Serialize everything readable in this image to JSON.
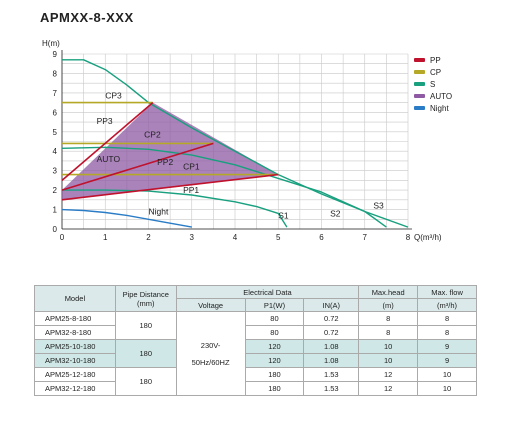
{
  "page_title": "APMXX-8-XXX",
  "chart_data": {
    "type": "line",
    "xlabel": "Q(m³/h)",
    "ylabel": "H(m)",
    "xlim": [
      0,
      8
    ],
    "ylim": [
      0,
      9
    ],
    "x_ticks": [
      "0",
      "1",
      "2",
      "3",
      "4",
      "5",
      "6",
      "7",
      "8"
    ],
    "y_ticks": [
      "0",
      "1",
      "2",
      "3",
      "4",
      "5",
      "6",
      "7",
      "8",
      "9"
    ],
    "grid": true,
    "legend_position": "top-right",
    "legend": [
      {
        "label": "PP",
        "color": "#c0112d"
      },
      {
        "label": "CP",
        "color": "#b5a827"
      },
      {
        "label": "S",
        "color": "#18a07f"
      },
      {
        "label": "AUTO",
        "color": "#8e5aa3"
      },
      {
        "label": "Night",
        "color": "#2a7cc6"
      }
    ],
    "series": [
      {
        "name": "S3",
        "type": "S",
        "color": "#18a07f",
        "x": [
          0,
          0.5,
          1,
          1.5,
          2,
          3,
          4,
          5,
          6,
          7,
          8
        ],
        "y": [
          8.7,
          8.7,
          8.2,
          7.4,
          6.5,
          5.2,
          4.0,
          2.8,
          1.8,
          0.9,
          0.1
        ]
      },
      {
        "name": "S2",
        "type": "S",
        "color": "#18a07f",
        "x": [
          0,
          1,
          2,
          3,
          4,
          5,
          6,
          7,
          7.5
        ],
        "y": [
          4.15,
          4.2,
          4.1,
          3.8,
          3.3,
          2.6,
          1.9,
          0.9,
          0.1
        ]
      },
      {
        "name": "S1",
        "type": "S",
        "color": "#18a07f",
        "x": [
          0,
          1,
          2,
          3,
          4,
          4.5,
          5,
          5.2
        ],
        "y": [
          2.0,
          2.0,
          1.95,
          1.75,
          1.4,
          1.15,
          0.8,
          0.1
        ]
      },
      {
        "name": "Night",
        "type": "Night",
        "color": "#2a7cc6",
        "x": [
          0,
          0.5,
          1,
          1.5,
          2,
          2.5,
          3
        ],
        "y": [
          1.0,
          0.95,
          0.85,
          0.7,
          0.5,
          0.3,
          0.1
        ]
      },
      {
        "name": "PP1",
        "type": "PP",
        "color": "#c0112d",
        "x": [
          0,
          5
        ],
        "y": [
          1.5,
          2.8
        ]
      },
      {
        "name": "PP2",
        "type": "PP",
        "color": "#c0112d",
        "x": [
          0,
          3.5
        ],
        "y": [
          2.0,
          4.4
        ]
      },
      {
        "name": "PP3",
        "type": "PP",
        "color": "#c0112d",
        "x": [
          0,
          2.1
        ],
        "y": [
          2.5,
          6.5
        ]
      },
      {
        "name": "CP1",
        "type": "CP",
        "color": "#b5a827",
        "x": [
          0,
          5
        ],
        "y": [
          2.8,
          2.8
        ]
      },
      {
        "name": "CP2",
        "type": "CP",
        "color": "#b5a827",
        "x": [
          0,
          3.5
        ],
        "y": [
          4.4,
          4.4
        ]
      },
      {
        "name": "CP3",
        "type": "CP",
        "color": "#b5a827",
        "x": [
          0,
          2.1
        ],
        "y": [
          6.5,
          6.5
        ]
      }
    ],
    "auto_region": {
      "label": "AUTO",
      "x": [
        0,
        2.1,
        5
      ],
      "y": [
        2.0,
        6.5,
        2.8
      ],
      "lower_x": [
        0,
        5
      ],
      "lower_y": [
        1.5,
        2.8
      ]
    },
    "curve_labels": [
      {
        "text": "CP3",
        "x": 1.0,
        "y": 6.7
      },
      {
        "text": "PP3",
        "x": 0.8,
        "y": 5.4
      },
      {
        "text": "CP2",
        "x": 1.9,
        "y": 4.7
      },
      {
        "text": "AUTO",
        "x": 0.8,
        "y": 3.45
      },
      {
        "text": "PP2",
        "x": 2.2,
        "y": 3.3
      },
      {
        "text": "CP1",
        "x": 2.8,
        "y": 3.05
      },
      {
        "text": "PP1",
        "x": 2.8,
        "y": 1.85
      },
      {
        "text": "Night",
        "x": 2.0,
        "y": 0.75
      },
      {
        "text": "S1",
        "x": 5.0,
        "y": 0.55
      },
      {
        "text": "S2",
        "x": 6.2,
        "y": 0.65
      },
      {
        "text": "S3",
        "x": 7.2,
        "y": 1.05
      }
    ]
  },
  "table": {
    "headers": {
      "model": "Model",
      "pipe_distance": "Pipe Distance (mm)",
      "electrical": "Electrical Data",
      "voltage": "Voltage",
      "p1": "P1(W)",
      "in": "IN(A)",
      "max_head": "Max.head",
      "max_head_unit": "(m)",
      "max_flow": "Max. flow",
      "max_flow_unit": "(m³/h)"
    },
    "voltage_line1": "230V-",
    "voltage_line2": "50Hz/60HZ",
    "rows": [
      {
        "model": "APM25-8-180",
        "pipe": "180",
        "p1": "80",
        "in": "0.72",
        "head": "8",
        "flow": "8"
      },
      {
        "model": "APM32-8-180",
        "p1": "80",
        "in": "0.72",
        "head": "8",
        "flow": "8"
      },
      {
        "model": "APM25-10-180",
        "pipe": "180",
        "p1": "120",
        "in": "1.08",
        "head": "10",
        "flow": "9"
      },
      {
        "model": "APM32-10-180",
        "p1": "120",
        "in": "1.08",
        "head": "10",
        "flow": "9"
      },
      {
        "model": "APM25-12-180",
        "pipe": "180",
        "p1": "180",
        "in": "1.53",
        "head": "12",
        "flow": "10"
      },
      {
        "model": "APM32-12-180",
        "p1": "180",
        "in": "1.53",
        "head": "12",
        "flow": "10"
      }
    ]
  }
}
